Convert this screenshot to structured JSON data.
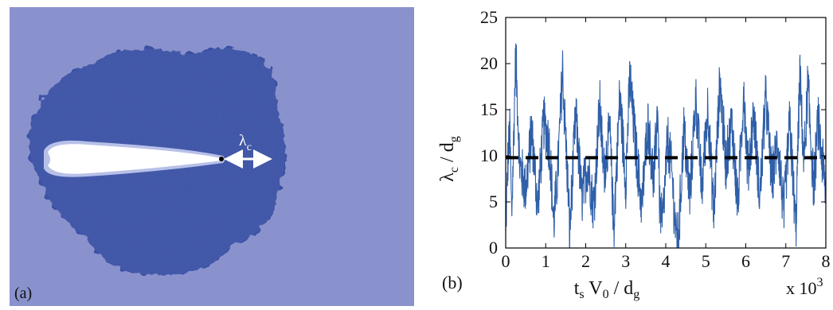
{
  "panel_a": {
    "label": "(a)",
    "annotation": {
      "symbol": "λ",
      "subscript": "c"
    },
    "colors": {
      "background": "#8a92cd",
      "cluster": "#3950a3",
      "cavity": "#ffffff",
      "cavity_edge": "#b8c0e8",
      "arrow": "#ffffff"
    }
  },
  "panel_b": {
    "label": "(b)",
    "colors": {
      "series": "#2f5fa8",
      "mean_line": "#000000",
      "axes": "#000000"
    }
  },
  "chart_data": {
    "type": "line",
    "ylabel": {
      "main": "λ",
      "sub1": "c",
      "sep": " / d",
      "sub2": "g"
    },
    "xlabel": {
      "t": "t",
      "t_sub": "s",
      "v": " V",
      "v_sub": "0",
      "sep": " / d",
      "d_sub": "g"
    },
    "x_scale_note": {
      "text": "x 10",
      "exp": "3"
    },
    "xlim": [
      0,
      8
    ],
    "ylim": [
      0,
      25
    ],
    "xticks": [
      0,
      1,
      2,
      3,
      4,
      5,
      6,
      7,
      8
    ],
    "yticks": [
      0,
      5,
      10,
      15,
      20,
      25
    ],
    "series": [
      {
        "style": "noisy fluctuating signal",
        "approx_mean": 10,
        "min": 0,
        "max": 22.2,
        "envelope_points": [
          [
            0.0,
            0.5
          ],
          [
            0.05,
            9
          ],
          [
            0.1,
            13
          ],
          [
            0.15,
            3
          ],
          [
            0.2,
            12
          ],
          [
            0.25,
            22.2
          ],
          [
            0.35,
            9
          ],
          [
            0.5,
            6
          ],
          [
            0.65,
            13
          ],
          [
            0.8,
            4
          ],
          [
            0.95,
            14
          ],
          [
            1.1,
            11
          ],
          [
            1.2,
            2
          ],
          [
            1.3,
            8
          ],
          [
            1.42,
            19.7
          ],
          [
            1.55,
            7
          ],
          [
            1.6,
            1
          ],
          [
            1.75,
            15
          ],
          [
            1.9,
            5
          ],
          [
            2.05,
            9
          ],
          [
            2.2,
            4
          ],
          [
            2.35,
            16
          ],
          [
            2.45,
            8
          ],
          [
            2.6,
            13
          ],
          [
            2.7,
            1.5
          ],
          [
            2.85,
            17
          ],
          [
            3.0,
            7
          ],
          [
            3.1,
            19
          ],
          [
            3.25,
            11
          ],
          [
            3.4,
            4
          ],
          [
            3.55,
            14
          ],
          [
            3.7,
            7
          ],
          [
            3.8,
            16
          ],
          [
            3.85,
            4
          ],
          [
            3.92,
            2
          ],
          [
            4.05,
            12
          ],
          [
            4.15,
            8
          ],
          [
            4.25,
            1
          ],
          [
            4.32,
            0.5
          ],
          [
            4.45,
            13
          ],
          [
            4.6,
            5
          ],
          [
            4.75,
            17
          ],
          [
            4.9,
            6
          ],
          [
            5.05,
            16
          ],
          [
            5.2,
            3
          ],
          [
            5.35,
            19
          ],
          [
            5.5,
            9
          ],
          [
            5.65,
            14
          ],
          [
            5.8,
            4
          ],
          [
            5.95,
            18
          ],
          [
            6.05,
            8
          ],
          [
            6.2,
            15
          ],
          [
            6.35,
            5
          ],
          [
            6.5,
            17
          ],
          [
            6.65,
            7
          ],
          [
            6.8,
            12
          ],
          [
            6.95,
            3
          ],
          [
            7.1,
            14
          ],
          [
            7.25,
            1
          ],
          [
            7.35,
            20
          ],
          [
            7.45,
            9
          ],
          [
            7.55,
            18
          ],
          [
            7.7,
            6
          ],
          [
            7.8,
            14
          ],
          [
            7.9,
            10
          ],
          [
            8.0,
            5.5
          ]
        ]
      },
      {
        "style": "dashed mean line",
        "x": [
          0,
          8
        ],
        "y": [
          9.8,
          9.8
        ]
      }
    ]
  }
}
